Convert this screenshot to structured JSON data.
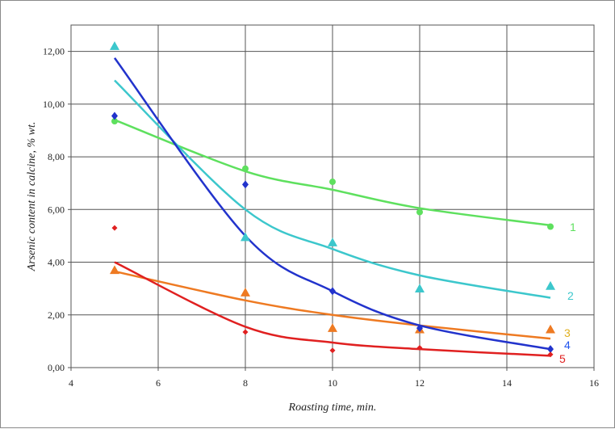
{
  "chart_data": {
    "type": "scatter",
    "title": "",
    "xlabel": "Roasting time, min.",
    "ylabel": "Arsenic content in calcine, % wt.",
    "xlim": [
      4,
      16
    ],
    "ylim": [
      0,
      13
    ],
    "xticks": [
      4,
      6,
      8,
      10,
      12,
      14,
      16
    ],
    "yticks": [
      0,
      2,
      4,
      6,
      8,
      10,
      12
    ],
    "ytick_labels": [
      "0,00",
      "2,00",
      "4,00",
      "6,00",
      "8,00",
      "10,00",
      "12,00"
    ],
    "grid": true,
    "legend": "inline labels at right end of curves",
    "series": [
      {
        "name": "1",
        "color": "#5ee05e",
        "marker": "circle",
        "x": [
          5,
          8,
          10,
          12,
          15
        ],
        "points": [
          9.35,
          7.55,
          7.05,
          5.9,
          5.35
        ],
        "fit": [
          9.4,
          7.45,
          6.75,
          6.05,
          5.4
        ]
      },
      {
        "name": "2",
        "color": "#3cc7cc",
        "marker": "triangle",
        "x": [
          5,
          8,
          10,
          12,
          15
        ],
        "points": [
          12.2,
          4.95,
          4.75,
          3.0,
          3.1
        ],
        "fit": [
          10.9,
          6.0,
          4.5,
          3.5,
          2.65
        ]
      },
      {
        "name": "3",
        "color": "#ee7a22",
        "marker": "triangle",
        "x": [
          5,
          8,
          10,
          12,
          15
        ],
        "points": [
          3.7,
          2.85,
          1.5,
          1.45,
          1.45
        ],
        "fit": [
          3.65,
          2.55,
          2.0,
          1.6,
          1.1
        ]
      },
      {
        "name": "4",
        "color": "#2233cc",
        "marker": "diamond",
        "x": [
          5,
          8,
          10,
          12,
          15
        ],
        "points": [
          9.55,
          6.95,
          2.9,
          1.5,
          0.7
        ],
        "fit": [
          11.75,
          5.0,
          2.9,
          1.6,
          0.7
        ]
      },
      {
        "name": "5",
        "color": "#e02020",
        "marker": "diamond-small",
        "x": [
          5,
          8,
          10,
          12,
          15
        ],
        "points": [
          5.3,
          1.35,
          0.65,
          0.75,
          0.5
        ],
        "fit": [
          4.0,
          1.55,
          0.95,
          0.7,
          0.45
        ]
      }
    ],
    "label_colors": {
      "1": "#5ee05e",
      "2": "#3cc7cc",
      "3": "#e0b020",
      "4": "#2255ee",
      "5": "#e02020"
    }
  }
}
